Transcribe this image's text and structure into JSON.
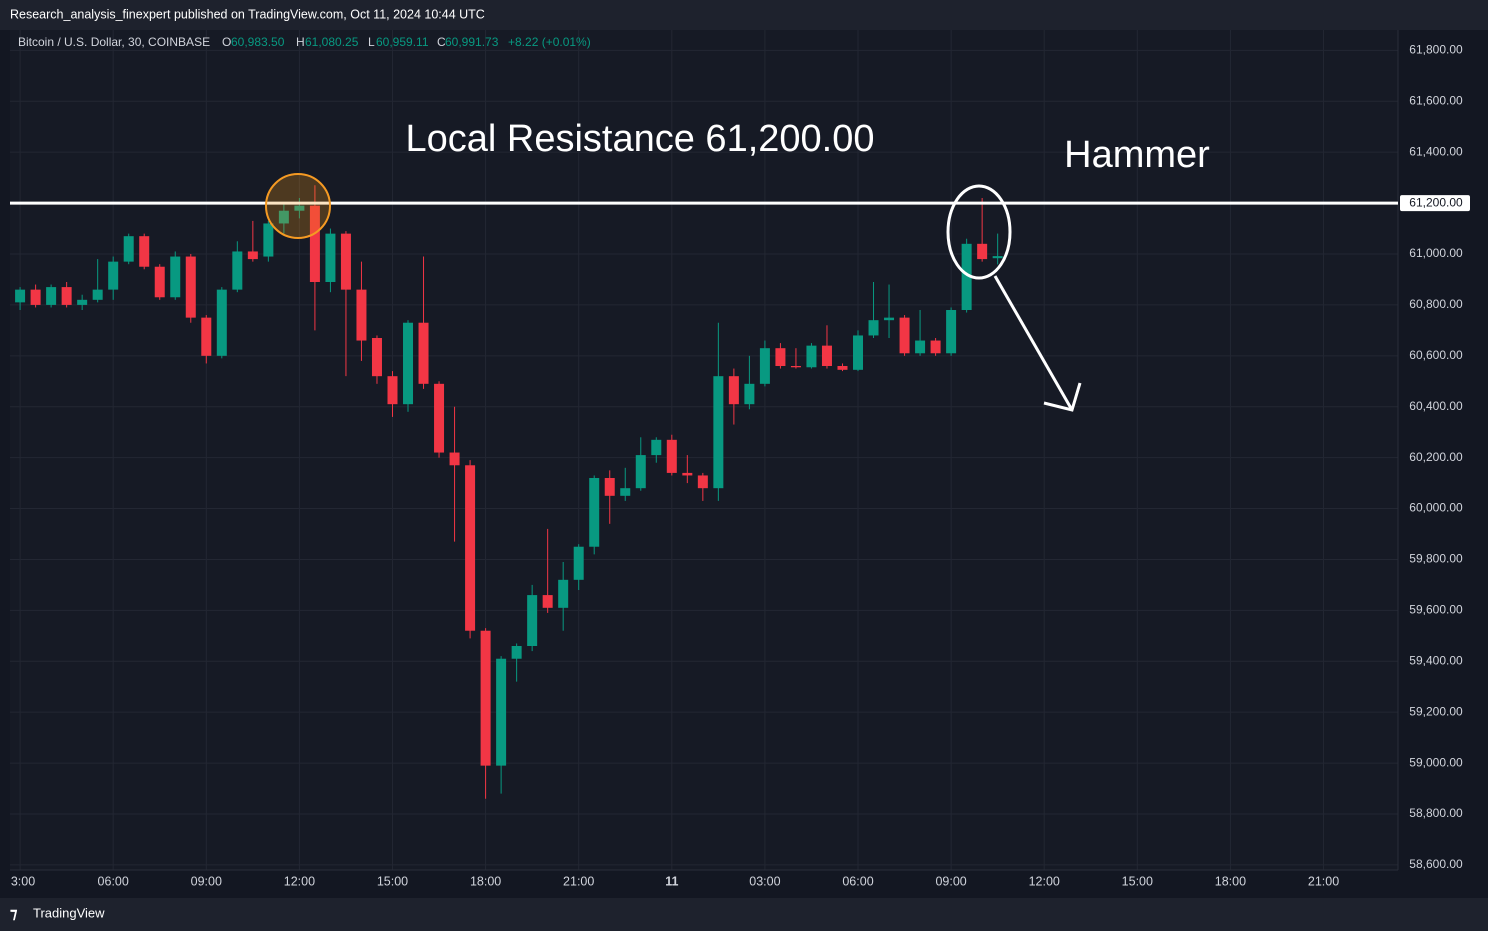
{
  "header": {
    "publisher": "Research_analysis_finexpert published on TradingView.com, Oct 11, 2024 10:44 UTC"
  },
  "legend": {
    "symbol": "Bitcoin / U.S. Dollar, 30, COINBASE",
    "o_label": "O",
    "open": "60,983.50",
    "h_label": "H",
    "high": "61,080.25",
    "l_label": "L",
    "low": "60,959.11",
    "c_label": "C",
    "close": "60,991.73",
    "change": "+8.22 (+0.01%)"
  },
  "footer": {
    "brand": "TradingView"
  },
  "chart_data": {
    "type": "candlestick",
    "up_color": "#089981",
    "down_color": "#f23645",
    "open": [
      60810,
      60860,
      60800,
      60870,
      60800,
      60820,
      60860,
      60970,
      61070,
      60950,
      60830,
      60990,
      60750,
      60600,
      60860,
      61010,
      60990,
      61120,
      61170,
      61190,
      60890,
      61080,
      60860,
      60670,
      60520,
      60410,
      60730,
      60490,
      60220,
      60170,
      59520,
      58990,
      59410,
      59460,
      59660,
      59610,
      59720,
      59850,
      60120,
      60050,
      60080,
      60210,
      60270,
      60140,
      60130,
      60080,
      60520,
      60410,
      60490,
      60630,
      60560,
      60555,
      60640,
      60560,
      60545,
      60680,
      60740,
      60750,
      60610,
      60660,
      60610,
      60780,
      61040,
      60983.5
    ],
    "high": [
      60870,
      60880,
      60880,
      60890,
      60840,
      60980,
      60990,
      61080,
      61080,
      60960,
      61010,
      61000,
      60760,
      60870,
      61050,
      61130,
      61130,
      61200,
      61220,
      61270,
      61100,
      61090,
      60970,
      60680,
      60540,
      60740,
      60990,
      60500,
      60400,
      60190,
      59530,
      59420,
      59470,
      59700,
      59920,
      59790,
      59860,
      60130,
      60150,
      60160,
      60280,
      60280,
      60290,
      60210,
      60140,
      60730,
      60550,
      60600,
      60660,
      60650,
      60630,
      60650,
      60720,
      60570,
      60700,
      60890,
      60880,
      60760,
      60780,
      60670,
      60790,
      61060,
      61220,
      61080.25
    ],
    "low": [
      60780,
      60790,
      60790,
      60790,
      60780,
      60810,
      60820,
      60960,
      60940,
      60820,
      60820,
      60730,
      60570,
      60590,
      60850,
      60970,
      60970,
      61080,
      61140,
      60700,
      60850,
      60520,
      60580,
      60490,
      60360,
      60380,
      60470,
      60200,
      59870,
      59490,
      58860,
      58880,
      59320,
      59440,
      59590,
      59520,
      59680,
      59820,
      59940,
      60030,
      60070,
      60180,
      60130,
      60100,
      60030,
      60030,
      60330,
      60390,
      60480,
      60550,
      60550,
      60550,
      60550,
      60540,
      60540,
      60670,
      60670,
      60600,
      60600,
      60600,
      60600,
      60770,
      60970,
      60959.11
    ],
    "close": [
      60860,
      60800,
      60870,
      60800,
      60820,
      60860,
      60970,
      61070,
      60950,
      60830,
      60990,
      60750,
      60600,
      60860,
      61010,
      60980,
      61120,
      61170,
      61190,
      60890,
      61080,
      60860,
      60660,
      60520,
      60410,
      60730,
      60490,
      60220,
      60170,
      59520,
      58990,
      59410,
      59460,
      59660,
      59610,
      59720,
      59850,
      60120,
      60050,
      60080,
      60210,
      60270,
      60140,
      60130,
      60080,
      60520,
      60410,
      60490,
      60630,
      60560,
      60555,
      60640,
      60560,
      60545,
      60680,
      60740,
      60750,
      60610,
      60660,
      60610,
      60780,
      61040,
      60980,
      60991.73
    ],
    "xlim": [
      -0.65,
      88.8
    ],
    "xticks": [
      {
        "value": 0,
        "label": "3:00"
      },
      {
        "value": 6,
        "label": "06:00"
      },
      {
        "value": 12,
        "label": "09:00"
      },
      {
        "value": 18,
        "label": "12:00"
      },
      {
        "value": 24,
        "label": "15:00"
      },
      {
        "value": 30,
        "label": "18:00"
      },
      {
        "value": 36,
        "label": "21:00"
      },
      {
        "value": 42,
        "label": "11"
      },
      {
        "value": 48,
        "label": "03:00"
      },
      {
        "value": 54,
        "label": "06:00"
      },
      {
        "value": 60,
        "label": "09:00"
      },
      {
        "value": 66,
        "label": "12:00"
      },
      {
        "value": 72,
        "label": "15:00"
      },
      {
        "value": 78,
        "label": "18:00"
      },
      {
        "value": 84,
        "label": "21:00"
      }
    ],
    "ylim": [
      58580,
      61880
    ],
    "yticks": [
      {
        "value": 58600,
        "label": "58,600.00"
      },
      {
        "value": 58800,
        "label": "58,800.00"
      },
      {
        "value": 59000,
        "label": "59,000.00"
      },
      {
        "value": 59200,
        "label": "59,200.00"
      },
      {
        "value": 59400,
        "label": "59,400.00"
      },
      {
        "value": 59600,
        "label": "59,600.00"
      },
      {
        "value": 59800,
        "label": "59,800.00"
      },
      {
        "value": 60000,
        "label": "60,000.00"
      },
      {
        "value": 60200,
        "label": "60,200.00"
      },
      {
        "value": 60400,
        "label": "60,400.00"
      },
      {
        "value": 60600,
        "label": "60,600.00"
      },
      {
        "value": 60800,
        "label": "60,800.00"
      },
      {
        "value": 61000,
        "label": "61,000.00"
      },
      {
        "value": 61200,
        "label": "61,200.00"
      },
      {
        "value": 61400,
        "label": "61,400.00"
      },
      {
        "value": 61600,
        "label": "61,600.00"
      },
      {
        "value": 61800,
        "label": "61,800.00"
      }
    ],
    "grid": true,
    "resistance": {
      "value": 61200,
      "label": "61,200.00",
      "color": "#ffffff"
    },
    "annotations": [
      {
        "text": "Local Resistance 61,200.00"
      },
      {
        "text": "Hammer"
      }
    ]
  }
}
